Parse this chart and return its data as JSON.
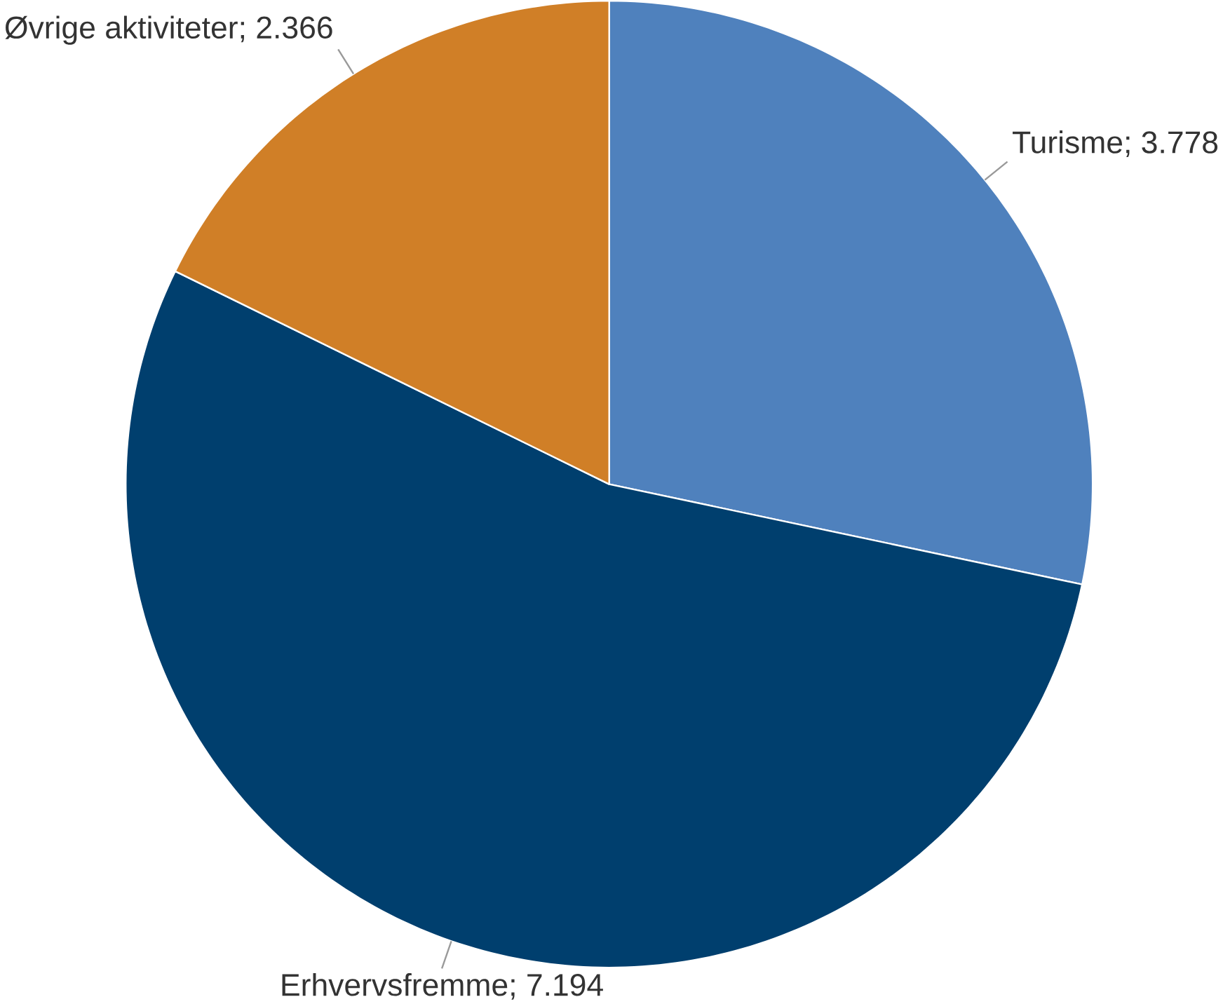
{
  "chart_data": {
    "type": "pie",
    "categories": [
      "Turisme; 3.778",
      "Erhvervsfremme; 7.194",
      "Øvrige aktiviteter; 2.366"
    ],
    "values": [
      3.778,
      7.194,
      2.366
    ],
    "colors": [
      "#4f81bd",
      "#003f6e",
      "#d07f27"
    ]
  }
}
